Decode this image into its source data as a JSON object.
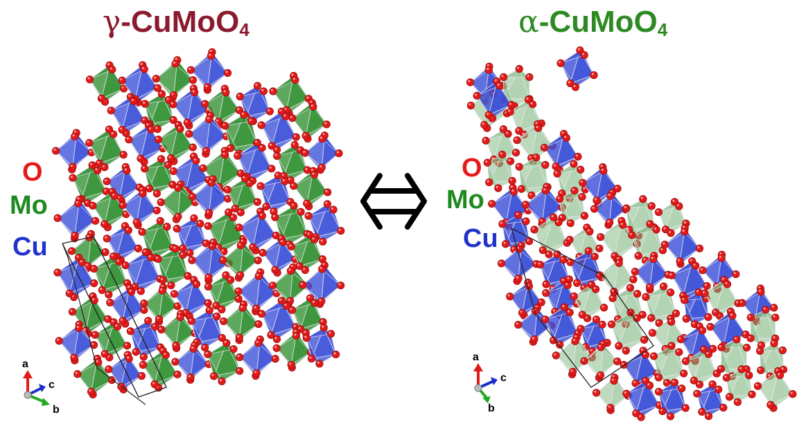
{
  "titles": {
    "gamma": {
      "symbol": "γ",
      "formula": "-CuMoO",
      "subscript": "4"
    },
    "alpha": {
      "symbol": "α",
      "formula": "-CuMoO",
      "subscript": "4"
    }
  },
  "legend": {
    "oxygen": "O",
    "molybdenum": "Mo",
    "copper": "Cu"
  },
  "axes": {
    "a": "a",
    "b": "b",
    "c": "c"
  },
  "colors": {
    "gamma_title": "#8b1a2e",
    "alpha_title": "#2d8a22",
    "oxygen": "#e51b1b",
    "molybdenum": "#1f8a1f",
    "copper": "#2233cc",
    "cu_polyhedron": "#3a4fd8",
    "mo_polyhedron": "#2f8f2f",
    "mo_polyhedron_alpha": "#7fb87f",
    "o_atom": "#e11a1a",
    "axis_a": "#e11a1a",
    "axis_b": "#22aa22",
    "axis_c": "#1a2ecc"
  },
  "icons": {
    "transition": "double-headed-arrow-icon"
  }
}
